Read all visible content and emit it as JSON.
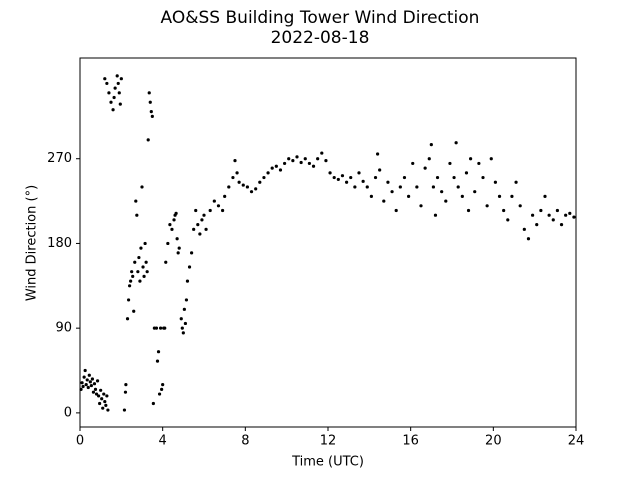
{
  "chart_data": {
    "type": "scatter",
    "title": "AO&SS Building Tower Wind Direction",
    "subtitle": "2022-08-18",
    "x_label": "Time (UTC)",
    "y_label": "Wind Direction (°)",
    "color": "#000000",
    "xlim": [
      0,
      24
    ],
    "xticks": [
      0,
      4,
      8,
      12,
      16,
      20,
      24
    ],
    "ylim": [
      -15,
      377
    ],
    "yticks": [
      0,
      90,
      180,
      270
    ],
    "series": [
      {
        "name": "Wind Direction",
        "x": [
          0.05,
          0.1,
          0.15,
          0.2,
          0.25,
          0.3,
          0.35,
          0.4,
          0.45,
          0.5,
          0.55,
          0.6,
          0.65,
          0.7,
          0.75,
          0.8,
          0.85,
          0.9,
          0.95,
          1.0,
          1.05,
          1.1,
          1.15,
          1.2,
          1.25,
          1.3,
          1.35,
          1.2,
          1.3,
          1.4,
          1.5,
          1.6,
          1.65,
          1.7,
          1.8,
          1.85,
          1.9,
          1.95,
          2.0,
          2.15,
          2.2,
          2.22,
          2.3,
          2.35,
          2.4,
          2.45,
          2.5,
          2.55,
          2.6,
          2.65,
          2.7,
          2.75,
          2.8,
          2.85,
          2.9,
          2.95,
          3.0,
          3.05,
          3.1,
          3.15,
          3.2,
          3.25,
          3.3,
          3.35,
          3.4,
          3.45,
          3.5,
          3.55,
          3.6,
          3.7,
          3.75,
          3.8,
          3.85,
          3.9,
          3.95,
          4.0,
          4.05,
          4.1,
          4.15,
          4.25,
          4.35,
          4.45,
          4.55,
          4.6,
          4.65,
          4.7,
          4.75,
          4.8,
          4.9,
          4.95,
          5.0,
          5.05,
          5.1,
          5.15,
          5.2,
          5.3,
          5.4,
          5.5,
          5.6,
          5.7,
          5.8,
          5.9,
          6.0,
          6.1,
          6.3,
          6.5,
          6.7,
          6.9,
          7.0,
          7.2,
          7.4,
          7.5,
          7.6,
          7.7,
          7.9,
          8.1,
          8.3,
          8.5,
          8.7,
          8.9,
          9.1,
          9.3,
          9.5,
          9.7,
          9.9,
          10.1,
          10.3,
          10.5,
          10.7,
          10.9,
          11.1,
          11.3,
          11.5,
          11.7,
          11.9,
          12.1,
          12.3,
          12.5,
          12.7,
          12.9,
          13.1,
          13.3,
          13.5,
          13.7,
          13.9,
          14.1,
          14.3,
          14.4,
          14.5,
          14.7,
          14.9,
          15.1,
          15.3,
          15.5,
          15.7,
          15.9,
          16.1,
          16.3,
          16.5,
          16.7,
          16.9,
          17.0,
          17.1,
          17.2,
          17.3,
          17.5,
          17.7,
          17.9,
          18.1,
          18.2,
          18.3,
          18.5,
          18.7,
          18.8,
          18.9,
          19.1,
          19.3,
          19.5,
          19.7,
          19.9,
          20.1,
          20.3,
          20.5,
          20.7,
          20.9,
          21.1,
          21.3,
          21.5,
          21.7,
          21.9,
          22.1,
          22.3,
          22.5,
          22.7,
          22.9,
          23.1,
          23.3,
          23.5,
          23.7,
          23.9
        ],
        "values": [
          25,
          32,
          28,
          38,
          45,
          30,
          35,
          27,
          40,
          33,
          29,
          36,
          22,
          31,
          25,
          20,
          34,
          18,
          10,
          24,
          15,
          5,
          20,
          12,
          8,
          18,
          3,
          355,
          350,
          340,
          330,
          322,
          335,
          345,
          358,
          350,
          340,
          328,
          355,
          3,
          22,
          30,
          100,
          120,
          135,
          140,
          150,
          145,
          108,
          160,
          225,
          210,
          150,
          165,
          140,
          175,
          240,
          155,
          145,
          180,
          160,
          150,
          290,
          340,
          330,
          320,
          315,
          10,
          90,
          90,
          55,
          65,
          20,
          90,
          25,
          30,
          90,
          90,
          160,
          180,
          200,
          195,
          205,
          210,
          212,
          185,
          170,
          175,
          100,
          90,
          85,
          110,
          95,
          120,
          140,
          155,
          170,
          195,
          215,
          200,
          190,
          205,
          210,
          195,
          215,
          225,
          220,
          215,
          230,
          240,
          250,
          268,
          255,
          245,
          242,
          240,
          235,
          238,
          245,
          250,
          255,
          260,
          262,
          258,
          265,
          270,
          268,
          272,
          266,
          270,
          265,
          262,
          270,
          276,
          268,
          255,
          250,
          248,
          252,
          245,
          250,
          240,
          255,
          246,
          240,
          230,
          250,
          275,
          258,
          225,
          245,
          235,
          215,
          240,
          250,
          230,
          265,
          240,
          220,
          260,
          270,
          285,
          240,
          210,
          250,
          235,
          225,
          265,
          250,
          287,
          240,
          230,
          255,
          215,
          270,
          235,
          265,
          250,
          220,
          270,
          245,
          230,
          215,
          205,
          230,
          245,
          220,
          195,
          185,
          210,
          200,
          215,
          230,
          210,
          205,
          215,
          200,
          210,
          212,
          208
        ]
      }
    ]
  }
}
